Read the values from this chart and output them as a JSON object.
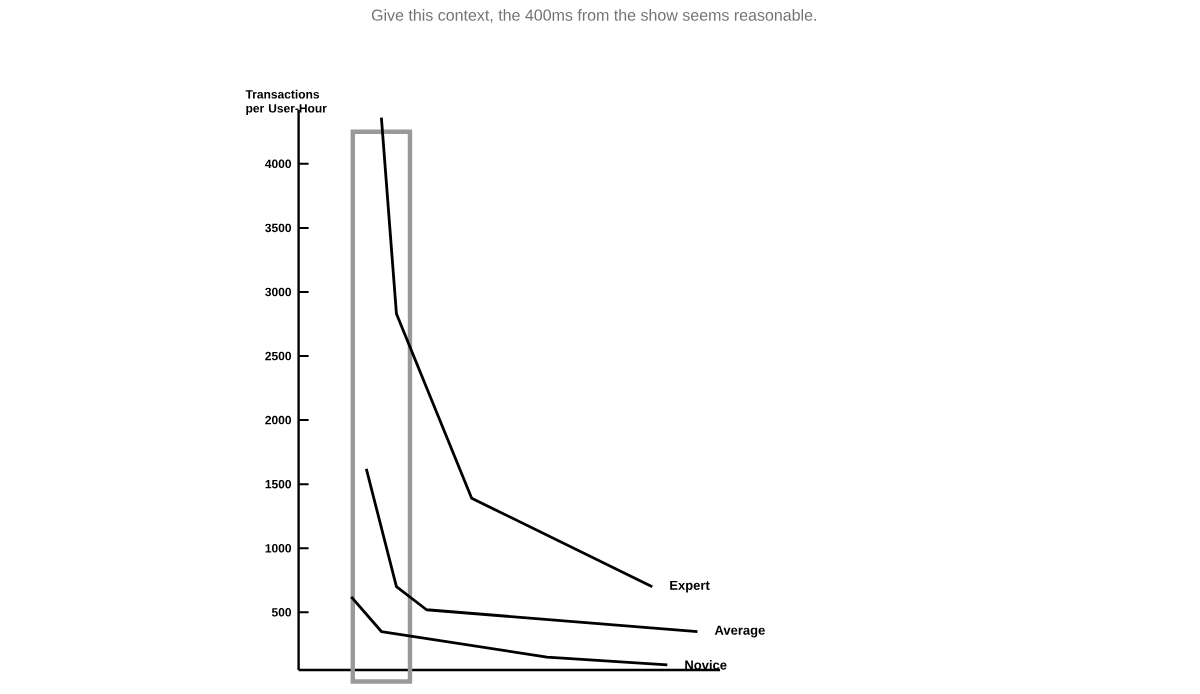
{
  "chart_data": {
    "type": "line",
    "title": "Give this context, the 400ms from the show seems reasonable.",
    "ylabel": "Transactions per User-Hour",
    "categories": [
      null,
      null,
      null,
      null,
      null,
      null,
      null,
      null,
      null,
      null,
      null,
      null,
      null,
      null,
      null,
      null,
      null,
      null,
      null,
      null,
      null,
      null,
      null,
      null,
      null,
      null,
      null,
      null
    ],
    "ylim": [
      50,
      4420
    ],
    "yticks": [
      500,
      1000,
      1500,
      2000,
      2500,
      3000,
      3500,
      4000
    ],
    "series": [
      {
        "name": "Expert",
        "color": "#000000",
        "values": [
          null,
          null,
          null,
          null,
          null,
          4360,
          2830,
          null,
          null,
          null,
          null,
          1390,
          null,
          null,
          null,
          null,
          null,
          null,
          null,
          null,
          null,
          null,
          null,
          700,
          null,
          null,
          null,
          null
        ]
      },
      {
        "name": "Average",
        "color": "#000000",
        "values": [
          null,
          null,
          null,
          null,
          1620,
          null,
          700,
          null,
          520,
          null,
          null,
          null,
          null,
          null,
          null,
          null,
          null,
          null,
          null,
          null,
          null,
          null,
          null,
          null,
          null,
          null,
          350,
          null
        ]
      },
      {
        "name": "Novice",
        "color": "#000000",
        "values": [
          null,
          null,
          null,
          620,
          null,
          350,
          null,
          null,
          null,
          null,
          null,
          null,
          null,
          null,
          null,
          null,
          150,
          null,
          null,
          null,
          null,
          null,
          null,
          null,
          90,
          null,
          null,
          null
        ]
      }
    ],
    "grid": false,
    "legend": false,
    "marker": "none",
    "line_style": "solid"
  }
}
